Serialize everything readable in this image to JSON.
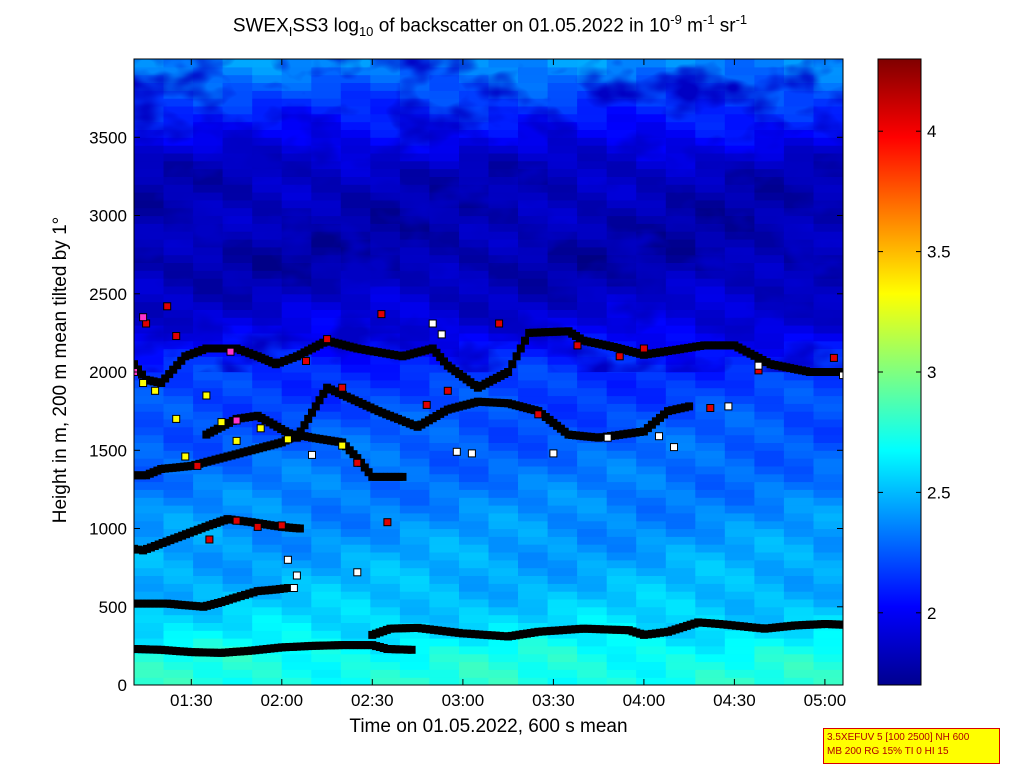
{
  "title": {
    "part1": "SWEX",
    "sub1": "I",
    "part2": "SS3 log",
    "sub2": "10",
    "part3": " of backscatter on 01.05.2022 in 10",
    "sup1": "-9",
    "part4": " m",
    "sup2": "-1",
    "part5": " sr",
    "sup3": "-1"
  },
  "infobox": {
    "line1": "3.5XEFUV 5 [100 2500] NH 600",
    "line2": "MB 200 RG 15% TI 0 HI 15"
  },
  "colors": {
    "marker_red": "#e00000",
    "marker_yellow": "#ffff00",
    "marker_white": "#ffffff",
    "marker_magenta": "#ff33cc",
    "marker_black": "#000000"
  },
  "chart_data": {
    "type": "heatmap",
    "title": "SWEX_ISS3 log10 of backscatter on 01.05.2022 in 10^-9 m^-1 sr^-1",
    "xlabel": "Time on 01.05.2022, 600 s mean",
    "ylabel": "Height in m, 200 m mean tilted by 1°",
    "x_ticks": [
      "01:30",
      "02:00",
      "02:30",
      "03:00",
      "03:30",
      "04:00",
      "04:30",
      "05:00"
    ],
    "x_tick_minutes": [
      90,
      120,
      150,
      180,
      210,
      240,
      270,
      300
    ],
    "xlim_minutes": [
      71,
      306
    ],
    "y_ticks": [
      0,
      500,
      1000,
      1500,
      2000,
      2500,
      3000,
      3500
    ],
    "ylim": [
      0,
      4000
    ],
    "colorbar": {
      "ticks": [
        2,
        2.5,
        3,
        3.5,
        4
      ],
      "range": [
        1.7,
        4.3
      ],
      "colormap": "jet"
    },
    "field_profile": [
      {
        "height": 0,
        "value": 2.75
      },
      {
        "height": 200,
        "value": 2.72
      },
      {
        "height": 350,
        "value": 2.6
      },
      {
        "height": 600,
        "value": 2.5
      },
      {
        "height": 1000,
        "value": 2.4
      },
      {
        "height": 1500,
        "value": 2.28
      },
      {
        "height": 2000,
        "value": 2.15
      },
      {
        "height": 2300,
        "value": 1.95
      },
      {
        "height": 2700,
        "value": 1.8
      },
      {
        "height": 3300,
        "value": 1.85
      },
      {
        "height": 3700,
        "value": 2.15
      },
      {
        "height": 4000,
        "value": 2.4
      }
    ],
    "series": [
      {
        "role": "cloud-base-low-a",
        "marker": "black",
        "points": [
          [
            71,
            230
          ],
          [
            80,
            225
          ],
          [
            90,
            210
          ],
          [
            100,
            205
          ],
          [
            110,
            220
          ],
          [
            120,
            240
          ],
          [
            130,
            250
          ],
          [
            140,
            255
          ],
          [
            150,
            255
          ],
          [
            155,
            230
          ],
          [
            163,
            225
          ]
        ]
      },
      {
        "role": "cloud-base-low-b",
        "marker": "black",
        "points": [
          [
            150,
            320
          ],
          [
            156,
            360
          ],
          [
            165,
            365
          ],
          [
            180,
            330
          ],
          [
            195,
            310
          ],
          [
            205,
            340
          ],
          [
            220,
            360
          ],
          [
            235,
            350
          ],
          [
            240,
            320
          ],
          [
            248,
            340
          ],
          [
            258,
            400
          ],
          [
            265,
            390
          ],
          [
            280,
            360
          ],
          [
            290,
            380
          ],
          [
            300,
            390
          ],
          [
            306,
            385
          ]
        ]
      },
      {
        "role": "cloud-base-mid-a",
        "marker": "black",
        "points": [
          [
            71,
            520
          ],
          [
            82,
            520
          ],
          [
            88,
            510
          ],
          [
            94,
            500
          ],
          [
            100,
            530
          ],
          [
            105,
            560
          ],
          [
            112,
            600
          ],
          [
            118,
            610
          ],
          [
            122,
            620
          ]
        ]
      },
      {
        "role": "cloud-base-mid-b",
        "marker": "black",
        "points": [
          [
            71,
            870
          ],
          [
            74,
            860
          ],
          [
            96,
            1020
          ],
          [
            102,
            1060
          ],
          [
            110,
            1040
          ],
          [
            120,
            1010
          ],
          [
            126,
            1000
          ]
        ]
      },
      {
        "role": "layer-1300",
        "marker": "black",
        "points": [
          [
            71,
            1340
          ],
          [
            75,
            1340
          ],
          [
            80,
            1380
          ],
          [
            90,
            1400
          ],
          [
            110,
            1500
          ],
          [
            120,
            1550
          ],
          [
            125,
            1600
          ],
          [
            130,
            1580
          ],
          [
            140,
            1550
          ],
          [
            145,
            1450
          ],
          [
            150,
            1330
          ],
          [
            160,
            1330
          ]
        ]
      },
      {
        "role": "layer-1700",
        "marker": "black",
        "points": [
          [
            95,
            1600
          ],
          [
            105,
            1700
          ],
          [
            112,
            1720
          ],
          [
            125,
            1580
          ],
          [
            135,
            1900
          ],
          [
            152,
            1750
          ],
          [
            165,
            1650
          ],
          [
            175,
            1760
          ],
          [
            185,
            1810
          ],
          [
            195,
            1800
          ],
          [
            205,
            1750
          ],
          [
            215,
            1600
          ],
          [
            225,
            1580
          ],
          [
            240,
            1620
          ],
          [
            248,
            1750
          ],
          [
            255,
            1780
          ]
        ]
      },
      {
        "role": "layer-2000",
        "marker": "black",
        "points": [
          [
            71,
            2050
          ],
          [
            75,
            1950
          ],
          [
            80,
            1930
          ],
          [
            88,
            2100
          ],
          [
            95,
            2150
          ],
          [
            105,
            2150
          ],
          [
            112,
            2100
          ],
          [
            118,
            2050
          ],
          [
            125,
            2100
          ],
          [
            135,
            2200
          ],
          [
            145,
            2150
          ],
          [
            160,
            2100
          ],
          [
            170,
            2150
          ],
          [
            175,
            2040
          ],
          [
            185,
            1900
          ],
          [
            195,
            2000
          ],
          [
            202,
            2250
          ],
          [
            215,
            2260
          ],
          [
            220,
            2200
          ],
          [
            230,
            2160
          ],
          [
            240,
            2110
          ],
          [
            260,
            2170
          ],
          [
            270,
            2170
          ],
          [
            282,
            2050
          ],
          [
            295,
            2000
          ],
          [
            306,
            2000
          ]
        ]
      },
      {
        "role": "red-markers",
        "marker": "red",
        "points": [
          [
            75,
            2310
          ],
          [
            82,
            2420
          ],
          [
            85,
            2230
          ],
          [
            92,
            1400
          ],
          [
            96,
            930
          ],
          [
            105,
            1050
          ],
          [
            112,
            1010
          ],
          [
            120,
            1020
          ],
          [
            128,
            2070
          ],
          [
            135,
            2210
          ],
          [
            140,
            1900
          ],
          [
            145,
            1420
          ],
          [
            153,
            2370
          ],
          [
            155,
            1040
          ],
          [
            168,
            1790
          ],
          [
            175,
            1880
          ],
          [
            192,
            2310
          ],
          [
            205,
            1730
          ],
          [
            218,
            2170
          ],
          [
            232,
            2100
          ],
          [
            240,
            2150
          ],
          [
            262,
            1770
          ],
          [
            278,
            2010
          ],
          [
            303,
            2090
          ]
        ]
      },
      {
        "role": "yellow-markers",
        "marker": "yellow",
        "points": [
          [
            74,
            1930
          ],
          [
            78,
            1880
          ],
          [
            85,
            1700
          ],
          [
            88,
            1460
          ],
          [
            95,
            1850
          ],
          [
            100,
            1680
          ],
          [
            105,
            1560
          ],
          [
            113,
            1640
          ],
          [
            122,
            1570
          ],
          [
            140,
            1530
          ]
        ]
      },
      {
        "role": "magenta-markers",
        "marker": "magenta",
        "points": [
          [
            71,
            2000
          ],
          [
            74,
            2350
          ],
          [
            103,
            2130
          ],
          [
            105,
            1690
          ]
        ]
      },
      {
        "role": "white-markers",
        "marker": "white",
        "points": [
          [
            122,
            800
          ],
          [
            124,
            620
          ],
          [
            125,
            700
          ],
          [
            130,
            1470
          ],
          [
            145,
            720
          ],
          [
            170,
            2310
          ],
          [
            173,
            2240
          ],
          [
            178,
            1490
          ],
          [
            183,
            1480
          ],
          [
            210,
            1480
          ],
          [
            228,
            1580
          ],
          [
            245,
            1590
          ],
          [
            250,
            1520
          ],
          [
            268,
            1780
          ],
          [
            278,
            2040
          ],
          [
            306,
            1980
          ]
        ]
      }
    ]
  }
}
